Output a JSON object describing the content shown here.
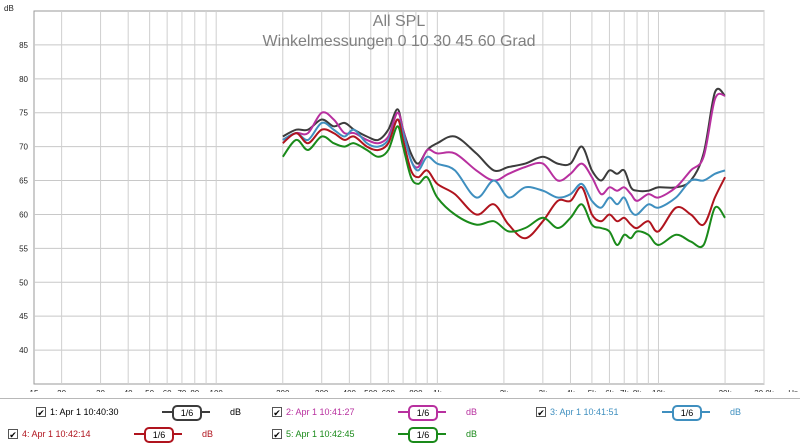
{
  "chart_data": {
    "type": "line",
    "title": "All SPL",
    "subtitle": "Winkelmessungen 0 10 30 45 60 Grad",
    "ylabel": "dB",
    "xlabel": "Hz",
    "x_scale": "log",
    "xlim": [
      15,
      30000
    ],
    "ylim": [
      35,
      90
    ],
    "grid": true,
    "x_ticks": [
      {
        "v": 15,
        "label": "15"
      },
      {
        "v": 20,
        "label": "20"
      },
      {
        "v": 30,
        "label": "30"
      },
      {
        "v": 40,
        "label": "40"
      },
      {
        "v": 50,
        "label": "50"
      },
      {
        "v": 60,
        "label": "60"
      },
      {
        "v": 70,
        "label": "70"
      },
      {
        "v": 80,
        "label": "80"
      },
      {
        "v": 100,
        "label": "100"
      },
      {
        "v": 200,
        "label": "200"
      },
      {
        "v": 300,
        "label": "300"
      },
      {
        "v": 400,
        "label": "400"
      },
      {
        "v": 500,
        "label": "500"
      },
      {
        "v": 600,
        "label": "600"
      },
      {
        "v": 800,
        "label": "800"
      },
      {
        "v": 1000,
        "label": "1k"
      },
      {
        "v": 2000,
        "label": "2k"
      },
      {
        "v": 3000,
        "label": "3k"
      },
      {
        "v": 4000,
        "label": "4k"
      },
      {
        "v": 5000,
        "label": "5k"
      },
      {
        "v": 6000,
        "label": "6k"
      },
      {
        "v": 7000,
        "label": "7k"
      },
      {
        "v": 8000,
        "label": "8k"
      },
      {
        "v": 10000,
        "label": "10k"
      },
      {
        "v": 20000,
        "label": "20k"
      },
      {
        "v": 30000,
        "label": "30,0k"
      }
    ],
    "x_unit_label": "Hz",
    "y_ticks": [
      40,
      45,
      50,
      55,
      60,
      65,
      70,
      75,
      80,
      85
    ],
    "y_unit_label": "dB",
    "series": [
      {
        "name": "1: Apr 1 10:40:30",
        "color": "#3c3c3c",
        "x": [
          200,
          230,
          260,
          300,
          340,
          380,
          420,
          480,
          540,
          600,
          660,
          700,
          760,
          820,
          900,
          1000,
          1200,
          1500,
          1800,
          2100,
          2500,
          3000,
          3500,
          4000,
          4500,
          5000,
          5500,
          6000,
          6500,
          7000,
          7500,
          8000,
          9000,
          10000,
          12000,
          14000,
          16000,
          18000,
          20000
        ],
        "values": [
          71.5,
          72.5,
          72.5,
          74,
          73,
          73.5,
          72.5,
          71.5,
          71,
          72.5,
          75.5,
          72.5,
          69,
          67.5,
          69.5,
          70.5,
          71.5,
          69,
          66.5,
          67,
          67.5,
          68.5,
          67.5,
          67.5,
          70,
          66.5,
          65,
          66.5,
          66,
          66.5,
          64,
          63.5,
          63.5,
          64,
          64,
          65,
          69,
          78,
          77.5
        ]
      },
      {
        "name": "2: Apr 1 10:41:27",
        "color": "#b8309f",
        "x": [
          200,
          230,
          260,
          300,
          340,
          380,
          420,
          480,
          540,
          600,
          660,
          700,
          760,
          820,
          900,
          1000,
          1200,
          1500,
          1800,
          2100,
          2500,
          3000,
          3500,
          4000,
          4500,
          5000,
          5500,
          6000,
          6500,
          7000,
          7500,
          8000,
          9000,
          10000,
          12000,
          14000,
          16000,
          18000,
          20000
        ],
        "values": [
          71,
          72,
          72,
          75,
          74,
          72,
          72,
          71,
          70.5,
          71.5,
          75,
          72.5,
          68,
          67,
          69.5,
          69,
          69,
          66.5,
          65,
          66,
          67,
          67.5,
          65,
          66,
          67.5,
          65.5,
          63,
          64,
          63.5,
          64,
          63,
          62,
          63,
          62.5,
          64,
          66.5,
          68.5,
          77,
          77.5
        ]
      },
      {
        "name": "3: Apr 1 10:41:51",
        "color": "#3f8fbf",
        "x": [
          200,
          230,
          260,
          300,
          340,
          380,
          420,
          480,
          540,
          600,
          660,
          700,
          760,
          820,
          900,
          1000,
          1200,
          1500,
          1800,
          2100,
          2500,
          3000,
          3500,
          4000,
          4500,
          5000,
          5500,
          6000,
          6500,
          7000,
          7500,
          8000,
          9000,
          10000,
          12000,
          14000,
          16000,
          18000,
          20000
        ],
        "values": [
          71,
          72,
          71,
          73.5,
          72.5,
          71.5,
          72.5,
          70.5,
          70,
          71,
          74,
          72,
          68,
          66.5,
          68.5,
          67.5,
          66.5,
          62.5,
          65,
          62.5,
          64,
          63.5,
          62.5,
          63,
          64.5,
          62,
          61,
          62.5,
          61.5,
          62.5,
          60.5,
          60,
          61.5,
          61,
          62.5,
          65,
          65,
          66,
          66.5
        ]
      },
      {
        "name": "4: Apr 1 10:42:14",
        "color": "#b0141e",
        "x": [
          200,
          230,
          260,
          300,
          340,
          380,
          420,
          480,
          540,
          600,
          660,
          700,
          760,
          820,
          900,
          1000,
          1200,
          1500,
          1800,
          2100,
          2500,
          3000,
          3500,
          4000,
          4500,
          5000,
          5500,
          6000,
          6500,
          7000,
          7500,
          8000,
          9000,
          10000,
          12000,
          14000,
          16000,
          18000,
          20000
        ],
        "values": [
          70.5,
          72,
          70.5,
          72.5,
          72,
          71,
          71.5,
          70,
          69.5,
          70.5,
          74,
          71,
          66.5,
          65.5,
          66.5,
          64.5,
          63,
          60,
          61.5,
          58.5,
          56.5,
          59,
          62,
          62,
          64,
          60,
          59,
          60,
          59,
          59.5,
          58.5,
          58,
          59,
          57.5,
          61,
          60,
          58.5,
          62.5,
          65.5
        ]
      },
      {
        "name": "5: Apr 1 10:42:45",
        "color": "#1a8a1a",
        "x": [
          200,
          230,
          260,
          300,
          340,
          380,
          420,
          480,
          540,
          600,
          660,
          700,
          760,
          820,
          900,
          1000,
          1200,
          1500,
          1800,
          2100,
          2500,
          3000,
          3500,
          4000,
          4500,
          5000,
          5500,
          6000,
          6500,
          7000,
          7500,
          8000,
          9000,
          10000,
          12000,
          14000,
          16000,
          18000,
          20000
        ],
        "values": [
          68.5,
          71,
          69.5,
          71.5,
          70.5,
          70,
          70.5,
          69.5,
          68.5,
          69.5,
          73,
          70,
          65.5,
          64.5,
          65.5,
          62.5,
          60,
          58.5,
          59,
          57.5,
          58,
          59.5,
          58,
          59.5,
          61.5,
          58.5,
          58,
          57.5,
          55.5,
          57,
          56.5,
          57.5,
          57,
          55.5,
          57,
          56,
          55.5,
          61,
          59.5
        ]
      }
    ]
  },
  "legend": {
    "items": [
      {
        "label": "1: Apr 1 10:40:30",
        "smoothing": "1/6",
        "unit": "dB",
        "checked": "✔",
        "color": "#3c3c3c"
      },
      {
        "label": "2: Apr 1 10:41:27",
        "smoothing": "1/6",
        "unit": "dB",
        "checked": "✔",
        "color": "#b8309f"
      },
      {
        "label": "3: Apr 1 10:41:51",
        "smoothing": "1/6",
        "unit": "dB",
        "checked": "✔",
        "color": "#3f8fbf"
      },
      {
        "label": "4: Apr 1 10:42:14",
        "smoothing": "1/6",
        "unit": "dB",
        "checked": "✔",
        "color": "#b0141e"
      },
      {
        "label": "5: Apr 1 10:42:45",
        "smoothing": "1/6",
        "unit": "dB",
        "checked": "✔",
        "color": "#1a8a1a"
      }
    ]
  }
}
